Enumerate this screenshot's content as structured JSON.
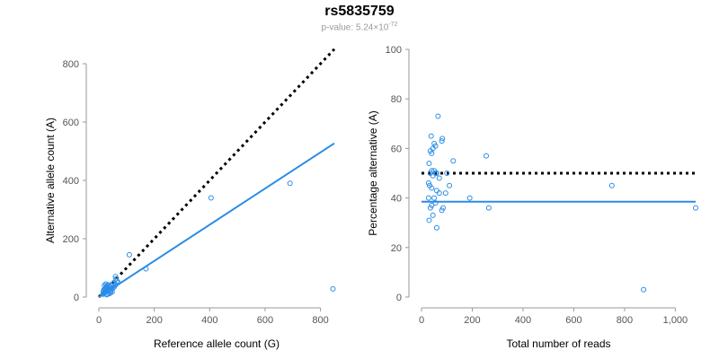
{
  "title": "rs5835759",
  "subtitle": {
    "prefix": "p-value: 5.24×10",
    "exponent": "-72"
  },
  "colors": {
    "points": "#2b8ce6",
    "fit": "#2b8ce6",
    "reference": "#000000",
    "axis": "#999999",
    "tick_text": "#555555"
  },
  "chart_data": [
    {
      "type": "scatter",
      "xlabel": "Reference allele count (G)",
      "ylabel": "Alternative allele count (A)",
      "xlim": [
        0,
        850
      ],
      "ylim": [
        0,
        800
      ],
      "x_ticks": [
        "0",
        "200",
        "400",
        "600",
        "800"
      ],
      "y_ticks": [
        "0",
        "200",
        "400",
        "600",
        "800"
      ],
      "x_tick_values": [
        0,
        200,
        400,
        600,
        800
      ],
      "y_tick_values": [
        0,
        200,
        400,
        600,
        800
      ],
      "grid": false,
      "points": [
        [
          405,
          340
        ],
        [
          690,
          390
        ],
        [
          845,
          28
        ],
        [
          110,
          145
        ],
        [
          170,
          97
        ],
        [
          60,
          70
        ],
        [
          62,
          62
        ],
        [
          55,
          50
        ],
        [
          45,
          40
        ],
        [
          40,
          35
        ],
        [
          35,
          30
        ],
        [
          30,
          28
        ],
        [
          28,
          22
        ],
        [
          25,
          20
        ],
        [
          22,
          18
        ],
        [
          20,
          15
        ],
        [
          18,
          12
        ],
        [
          15,
          10
        ],
        [
          20,
          40
        ],
        [
          25,
          45
        ],
        [
          30,
          35
        ],
        [
          35,
          25
        ],
        [
          40,
          20
        ],
        [
          45,
          25
        ],
        [
          50,
          30
        ],
        [
          55,
          35
        ],
        [
          60,
          42
        ],
        [
          48,
          18
        ],
        [
          42,
          15
        ],
        [
          38,
          12
        ],
        [
          32,
          10
        ],
        [
          28,
          8
        ],
        [
          24,
          30
        ],
        [
          26,
          35
        ],
        [
          30,
          40
        ],
        [
          36,
          42
        ],
        [
          50,
          45
        ],
        [
          65,
          55
        ],
        [
          70,
          50
        ],
        [
          16,
          20
        ],
        [
          18,
          25
        ],
        [
          22,
          28
        ]
      ],
      "fit_line": {
        "x": [
          0,
          850
        ],
        "y": [
          0,
          527
        ]
      },
      "reference_line": {
        "x": [
          0,
          850
        ],
        "y": [
          0,
          850
        ],
        "style": "dotted"
      }
    },
    {
      "type": "scatter",
      "xlabel": "Total number of reads",
      "ylabel": "Percentage alternative (A)",
      "xlim": [
        0,
        1080
      ],
      "ylim": [
        0,
        100
      ],
      "x_ticks": [
        "0",
        "200",
        "400",
        "600",
        "800",
        "1,000"
      ],
      "y_ticks": [
        "0",
        "20",
        "40",
        "60",
        "80",
        "100"
      ],
      "x_tick_values": [
        0,
        200,
        400,
        600,
        800,
        1000
      ],
      "y_tick_values": [
        0,
        20,
        40,
        60,
        80,
        100
      ],
      "grid": false,
      "points": [
        [
          65,
          73
        ],
        [
          50,
          62
        ],
        [
          55,
          61
        ],
        [
          80,
          63
        ],
        [
          82,
          64
        ],
        [
          35,
          59
        ],
        [
          40,
          58
        ],
        [
          45,
          60
        ],
        [
          38,
          65
        ],
        [
          30,
          54
        ],
        [
          70,
          48
        ],
        [
          60,
          50
        ],
        [
          55,
          50
        ],
        [
          50,
          51
        ],
        [
          40,
          51
        ],
        [
          35,
          50
        ],
        [
          45,
          49
        ],
        [
          100,
          50
        ],
        [
          28,
          46
        ],
        [
          32,
          45
        ],
        [
          40,
          44
        ],
        [
          60,
          43
        ],
        [
          70,
          42
        ],
        [
          95,
          42
        ],
        [
          110,
          45
        ],
        [
          125,
          55
        ],
        [
          50,
          40
        ],
        [
          55,
          38
        ],
        [
          35,
          36
        ],
        [
          40,
          37
        ],
        [
          28,
          40
        ],
        [
          45,
          33
        ],
        [
          80,
          35
        ],
        [
          30,
          31
        ],
        [
          60,
          28
        ],
        [
          255,
          57
        ],
        [
          265,
          36
        ],
        [
          190,
          40
        ],
        [
          750,
          45
        ],
        [
          875,
          3
        ],
        [
          1080,
          36
        ],
        [
          85,
          36
        ]
      ],
      "fit_line": {
        "x": [
          0,
          1080
        ],
        "y": [
          38.5,
          38.5
        ]
      },
      "reference_line": {
        "x": [
          0,
          1080
        ],
        "y": [
          50,
          50
        ],
        "style": "dotted"
      }
    }
  ]
}
